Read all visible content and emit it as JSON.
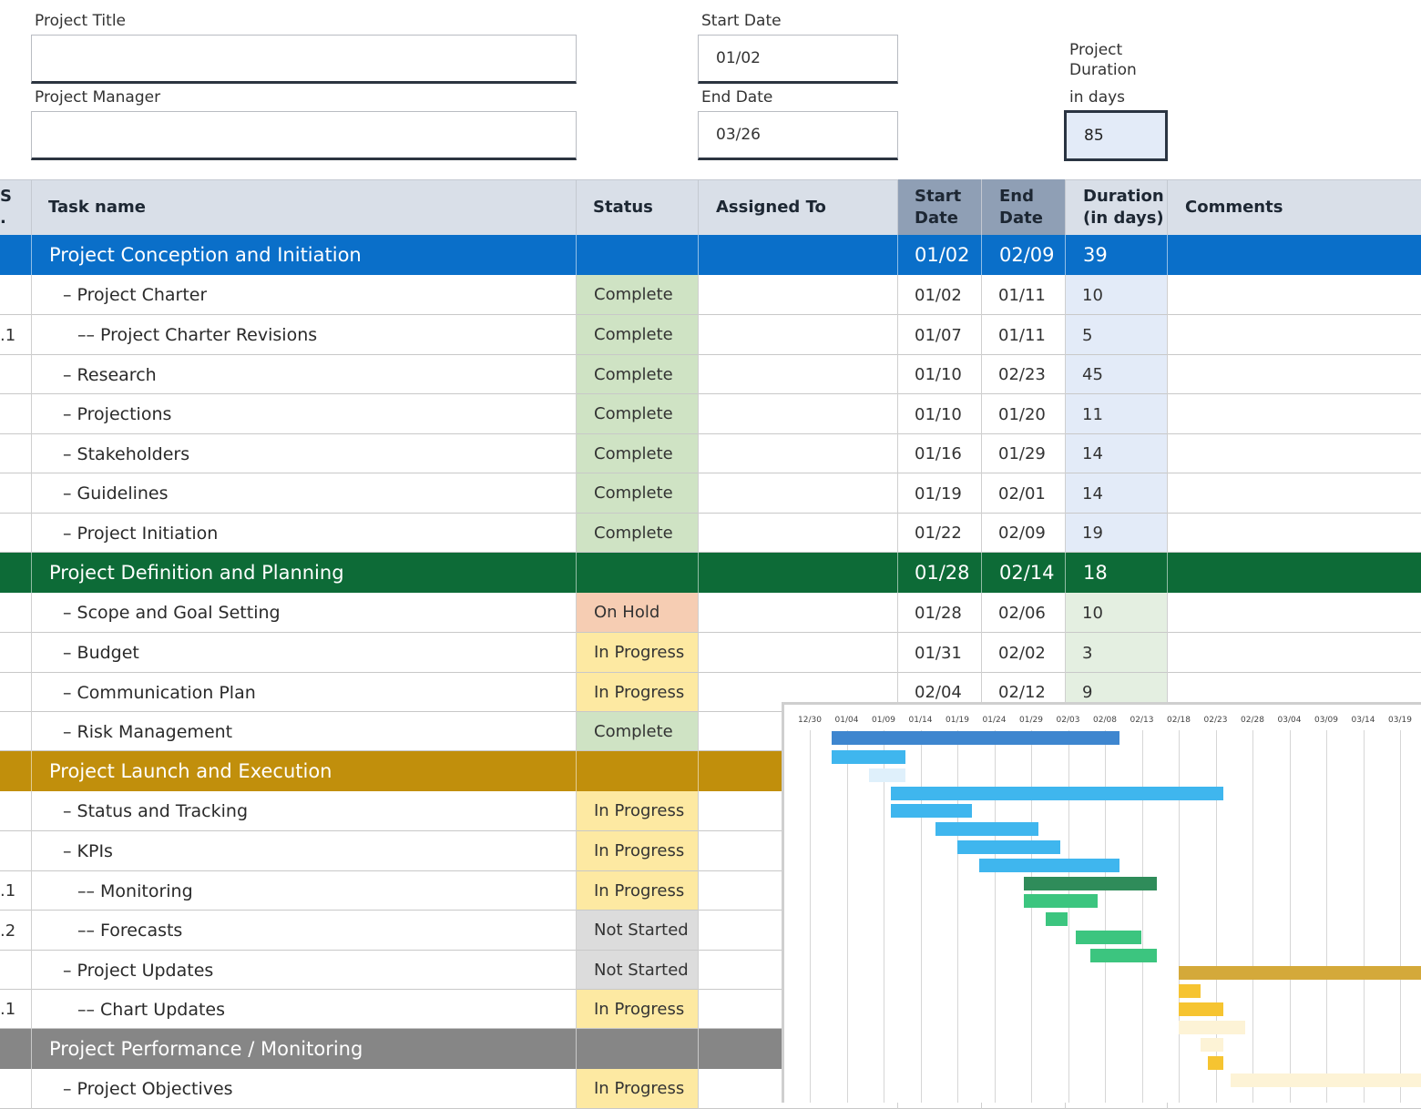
{
  "form": {
    "project_title_label": "Project Title",
    "project_title_value": "",
    "project_manager_label": "Project Manager",
    "project_manager_value": "",
    "start_date_label": "Start Date",
    "start_date_value": "01/02",
    "end_date_label": "End Date",
    "end_date_value": "03/26",
    "duration_label_1": "Project",
    "duration_label_2": "Duration",
    "duration_label_3": "in days",
    "duration_value": "85"
  },
  "table": {
    "headers": {
      "wbs_1": "S",
      "wbs_2": ".",
      "task": "Task name",
      "status": "Status",
      "assigned": "Assigned To",
      "start_1": "Start",
      "start_2": "Date",
      "end_1": "End",
      "end_2": "Date",
      "dur_1": "Duration",
      "dur_2": "(in days)",
      "comments": "Comments"
    },
    "rows": [
      {
        "type": "phase",
        "phase": "blue",
        "wbs": "",
        "task": "Project Conception and Initiation",
        "status": "",
        "start": "01/02",
        "end": "02/09",
        "dur": "39"
      },
      {
        "type": "task",
        "phase": "blue",
        "wbs": "",
        "task": "– Project Charter",
        "status": "Complete",
        "start": "01/02",
        "end": "01/11",
        "dur": "10"
      },
      {
        "type": "task",
        "phase": "blue",
        "wbs": ".1",
        "task": "–– Project Charter Revisions",
        "status": "Complete",
        "start": "01/07",
        "end": "01/11",
        "dur": "5"
      },
      {
        "type": "task",
        "phase": "blue",
        "wbs": "",
        "task": "– Research",
        "status": "Complete",
        "start": "01/10",
        "end": "02/23",
        "dur": "45"
      },
      {
        "type": "task",
        "phase": "blue",
        "wbs": "",
        "task": "– Projections",
        "status": "Complete",
        "start": "01/10",
        "end": "01/20",
        "dur": "11"
      },
      {
        "type": "task",
        "phase": "blue",
        "wbs": "",
        "task": "– Stakeholders",
        "status": "Complete",
        "start": "01/16",
        "end": "01/29",
        "dur": "14"
      },
      {
        "type": "task",
        "phase": "blue",
        "wbs": "",
        "task": "– Guidelines",
        "status": "Complete",
        "start": "01/19",
        "end": "02/01",
        "dur": "14"
      },
      {
        "type": "task",
        "phase": "blue",
        "wbs": "",
        "task": "– Project Initiation",
        "status": "Complete",
        "start": "01/22",
        "end": "02/09",
        "dur": "19"
      },
      {
        "type": "phase",
        "phase": "green",
        "wbs": "",
        "task": "Project Definition and Planning",
        "status": "",
        "start": "01/28",
        "end": "02/14",
        "dur": "18"
      },
      {
        "type": "task",
        "phase": "green",
        "wbs": "",
        "task": "– Scope and Goal Setting",
        "status": "On Hold",
        "start": "01/28",
        "end": "02/06",
        "dur": "10"
      },
      {
        "type": "task",
        "phase": "green",
        "wbs": "",
        "task": "– Budget",
        "status": "In Progress",
        "start": "01/31",
        "end": "02/02",
        "dur": "3"
      },
      {
        "type": "task",
        "phase": "green",
        "wbs": "",
        "task": "– Communication Plan",
        "status": "In Progress",
        "start": "02/04",
        "end": "02/12",
        "dur": "9"
      },
      {
        "type": "task",
        "phase": "green",
        "wbs": "",
        "task": "– Risk Management",
        "status": "Complete",
        "start": "",
        "end": "",
        "dur": ""
      },
      {
        "type": "phase",
        "phase": "gold",
        "wbs": "",
        "task": "Project Launch and Execution",
        "status": "",
        "start": "",
        "end": "",
        "dur": ""
      },
      {
        "type": "task",
        "phase": "gold",
        "wbs": "",
        "task": "– Status and Tracking",
        "status": "In Progress",
        "start": "",
        "end": "",
        "dur": ""
      },
      {
        "type": "task",
        "phase": "gold",
        "wbs": "",
        "task": "– KPIs",
        "status": "In Progress",
        "start": "",
        "end": "",
        "dur": ""
      },
      {
        "type": "task",
        "phase": "gold",
        "wbs": ".1",
        "task": "–– Monitoring",
        "status": "In Progress",
        "start": "",
        "end": "",
        "dur": ""
      },
      {
        "type": "task",
        "phase": "gold",
        "wbs": ".2",
        "task": "–– Forecasts",
        "status": "Not Started",
        "start": "",
        "end": "",
        "dur": ""
      },
      {
        "type": "task",
        "phase": "gold",
        "wbs": "",
        "task": "– Project Updates",
        "status": "Not Started",
        "start": "",
        "end": "",
        "dur": ""
      },
      {
        "type": "task",
        "phase": "gold",
        "wbs": ".1",
        "task": "–– Chart Updates",
        "status": "In Progress",
        "start": "",
        "end": "",
        "dur": ""
      },
      {
        "type": "phase",
        "phase": "gray",
        "wbs": "",
        "task": "Project Performance / Monitoring",
        "status": "",
        "start": "",
        "end": "",
        "dur": ""
      },
      {
        "type": "task",
        "phase": "gray",
        "wbs": "",
        "task": "– Project Objectives",
        "status": "In Progress",
        "start": "",
        "end": "",
        "dur": ""
      }
    ]
  },
  "colors": {
    "phase_blue": "#0a6fc9",
    "phase_green": "#0d6b37",
    "phase_gold": "#c18f0c",
    "phase_gray": "#868686",
    "status_complete": "#cfe3c4",
    "status_on_hold": "#f6cdb3",
    "status_in_progress": "#fde9a2",
    "status_not_started": "#dcdcdc",
    "dur_blue": "#e3ebf8",
    "dur_green": "#e4efe1",
    "header_bg": "#d9dfe8",
    "header_date_bg": "#8f9fb5"
  },
  "gantt": {
    "ticks": [
      "12/30",
      "01/04",
      "01/09",
      "01/14",
      "01/19",
      "01/24",
      "01/29",
      "02/03",
      "02/08",
      "02/13",
      "02/18",
      "02/23",
      "02/28",
      "03/04",
      "03/09",
      "03/14",
      "03/19"
    ],
    "bars": [
      {
        "start": "01/02",
        "end": "02/09",
        "color": "#3e86cf"
      },
      {
        "start": "01/02",
        "end": "01/11",
        "color": "#3fb6ee"
      },
      {
        "start": "01/07",
        "end": "01/11",
        "color": "#dff0fb"
      },
      {
        "start": "01/10",
        "end": "02/23",
        "color": "#3fb6ee"
      },
      {
        "start": "01/10",
        "end": "01/20",
        "color": "#3fb6ee"
      },
      {
        "start": "01/16",
        "end": "01/29",
        "color": "#3fb6ee"
      },
      {
        "start": "01/19",
        "end": "02/01",
        "color": "#3fb6ee"
      },
      {
        "start": "01/22",
        "end": "02/09",
        "color": "#3fb6ee"
      },
      {
        "start": "01/28",
        "end": "02/14",
        "color": "#2f8c5a"
      },
      {
        "start": "01/28",
        "end": "02/06",
        "color": "#3cc57f"
      },
      {
        "start": "01/31",
        "end": "02/02",
        "color": "#3cc57f"
      },
      {
        "start": "02/04",
        "end": "02/12",
        "color": "#3cc57f"
      },
      {
        "start": "02/06",
        "end": "02/14",
        "color": "#3cc57f"
      },
      {
        "start": "02/18",
        "end": "03/26",
        "color": "#d4a93a"
      },
      {
        "start": "02/18",
        "end": "02/20",
        "color": "#f6c431"
      },
      {
        "start": "02/18",
        "end": "02/23",
        "color": "#f6c431"
      },
      {
        "start": "02/18",
        "end": "02/26",
        "color": "#fdf3d6"
      },
      {
        "start": "02/21",
        "end": "02/23",
        "color": "#fdf3d6"
      },
      {
        "start": "02/22",
        "end": "02/23",
        "color": "#f6c431"
      },
      {
        "start": "02/25",
        "end": "03/26",
        "color": "#fdf3d6"
      }
    ]
  }
}
